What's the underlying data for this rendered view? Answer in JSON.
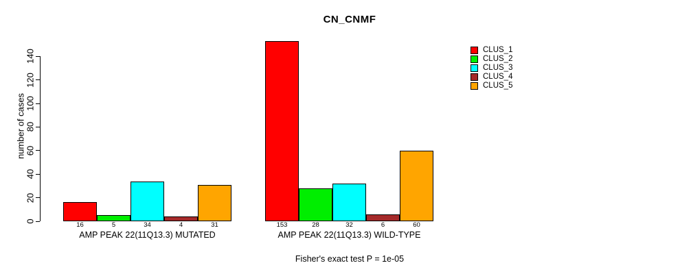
{
  "title": "CN_CNMF",
  "subtitle": "Fisher's exact test P = 1e-05",
  "chart_data": {
    "type": "bar",
    "title": "CN_CNMF",
    "ylabel": "number of cases",
    "ylim": [
      0,
      140
    ],
    "yticks": [
      0,
      20,
      40,
      60,
      80,
      100,
      120,
      140
    ],
    "grid": false,
    "legend_position": "right",
    "categories": [
      "AMP PEAK 22(11Q13.3) MUTATED",
      "AMP PEAK 22(11Q13.3) WILD-TYPE"
    ],
    "groups": [
      {
        "label": "AMP PEAK 22(11Q13.3) MUTATED",
        "values": [
          16,
          5,
          34,
          4,
          31
        ]
      },
      {
        "label": "AMP PEAK 22(11Q13.3) WILD-TYPE",
        "values": [
          153,
          28,
          32,
          6,
          60
        ]
      }
    ],
    "series": [
      {
        "name": "CLUS_1",
        "color": "#FF0000",
        "values": [
          16,
          153
        ]
      },
      {
        "name": "CLUS_2",
        "color": "#00EE00",
        "values": [
          5,
          28
        ]
      },
      {
        "name": "CLUS_3",
        "color": "#00FFFF",
        "values": [
          34,
          32
        ]
      },
      {
        "name": "CLUS_4",
        "color": "#A52A2A",
        "values": [
          4,
          6
        ]
      },
      {
        "name": "CLUS_5",
        "color": "#FFA500",
        "values": [
          31,
          60
        ]
      }
    ],
    "annotation": "Fisher's exact test P = 1e-05"
  }
}
